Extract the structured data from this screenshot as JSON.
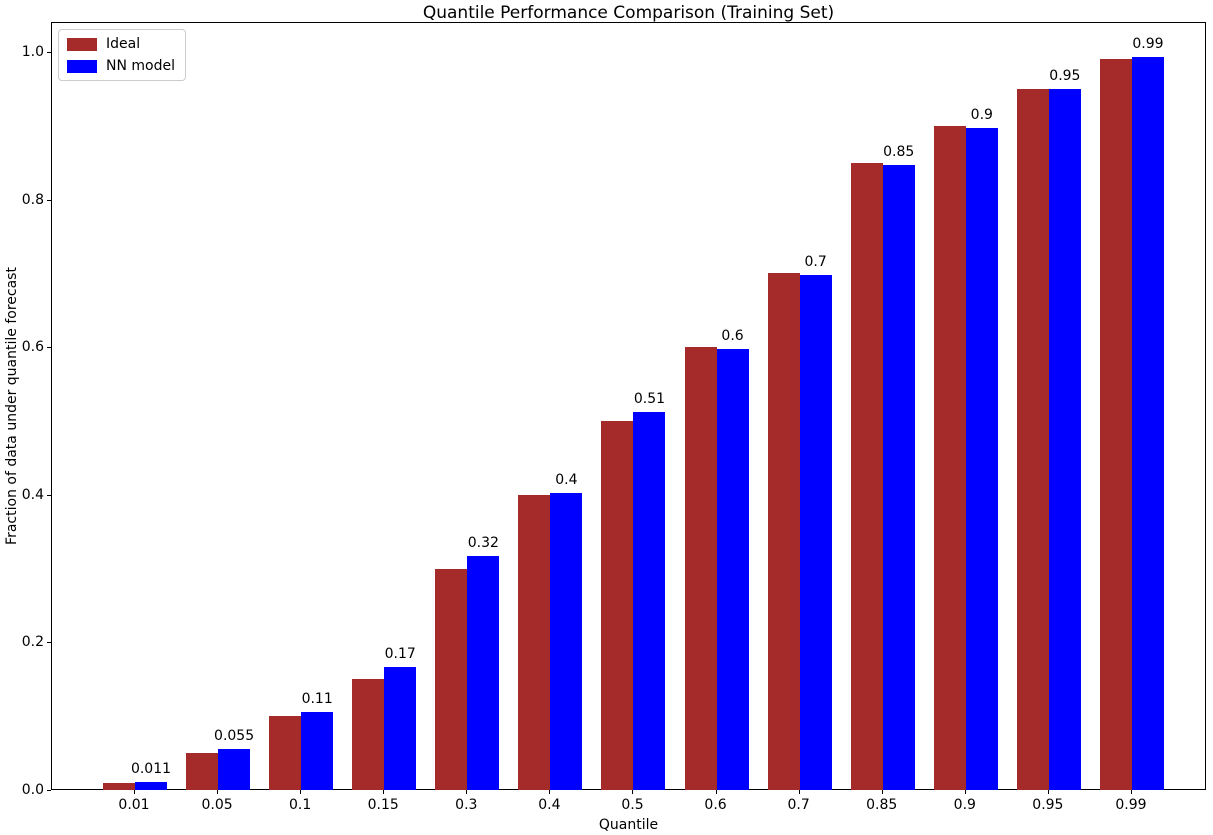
{
  "chart_data": {
    "type": "bar",
    "title": "Quantile Performance Comparison (Training Set)",
    "xlabel": "Quantile",
    "ylabel": "Fraction of data under quantile forecast",
    "categories": [
      "0.01",
      "0.05",
      "0.1",
      "0.15",
      "0.3",
      "0.4",
      "0.5",
      "0.6",
      "0.7",
      "0.85",
      "0.9",
      "0.95",
      "0.99"
    ],
    "series": [
      {
        "name": "Ideal",
        "color": "#A52A2A",
        "values": [
          0.01,
          0.05,
          0.1,
          0.15,
          0.3,
          0.4,
          0.5,
          0.6,
          0.7,
          0.85,
          0.9,
          0.95,
          0.99
        ]
      },
      {
        "name": "NN model",
        "color": "#0000FF",
        "values": [
          0.011,
          0.055,
          0.106,
          0.167,
          0.317,
          0.402,
          0.512,
          0.597,
          0.698,
          0.847,
          0.897,
          0.95,
          0.993
        ]
      }
    ],
    "bar_labels": [
      "0.011",
      "0.055",
      "0.11",
      "0.17",
      "0.32",
      "0.4",
      "0.51",
      "0.6",
      "0.7",
      "0.85",
      "0.9",
      "0.95",
      "0.99"
    ],
    "y_ticks": [
      "0.0",
      "0.2",
      "0.4",
      "0.6",
      "0.8",
      "1.0"
    ],
    "y_tick_values": [
      0.0,
      0.2,
      0.4,
      0.6,
      0.8,
      1.0
    ],
    "ylim": [
      0,
      1.04
    ],
    "grid": false,
    "legend_position": "upper left"
  }
}
